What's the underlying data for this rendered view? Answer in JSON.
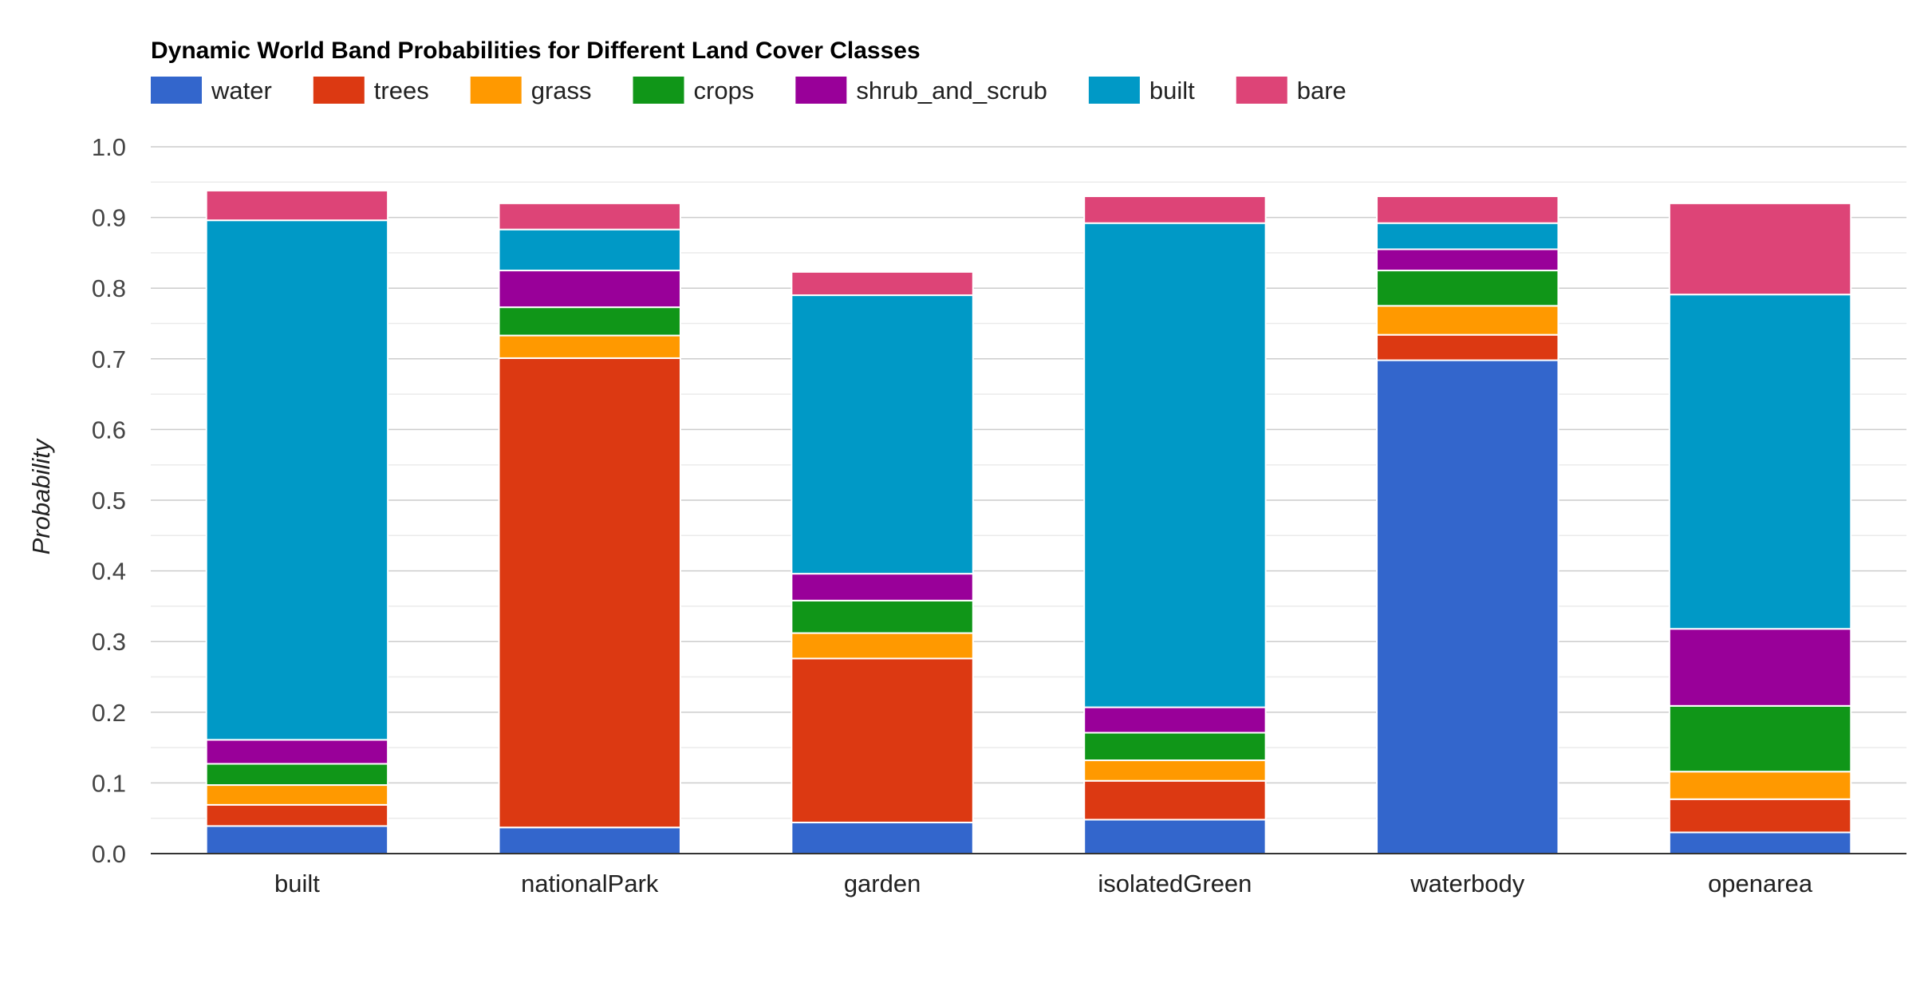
{
  "chart_data": {
    "type": "bar",
    "stacked": true,
    "title": "Dynamic World Band Probabilities for Different Land Cover Classes",
    "xlabel": "",
    "ylabel": "Probability",
    "ylim": [
      0,
      1.0
    ],
    "yticks": [
      "0.0",
      "0.1",
      "0.2",
      "0.3",
      "0.4",
      "0.5",
      "0.6",
      "0.7",
      "0.8",
      "0.9",
      "1.0"
    ],
    "grid": true,
    "legend_position": "top-left",
    "categories": [
      "built",
      "nationalPark",
      "garden",
      "isolatedGreen",
      "waterbody",
      "openarea"
    ],
    "series": [
      {
        "name": "water",
        "color": "#3366cc",
        "values": [
          0.039,
          0.037,
          0.044,
          0.048,
          0.698,
          0.03
        ]
      },
      {
        "name": "trees",
        "color": "#dc3912",
        "values": [
          0.03,
          0.664,
          0.232,
          0.055,
          0.036,
          0.047
        ]
      },
      {
        "name": "grass",
        "color": "#ff9900",
        "values": [
          0.028,
          0.032,
          0.036,
          0.029,
          0.041,
          0.039
        ]
      },
      {
        "name": "crops",
        "color": "#109618",
        "values": [
          0.03,
          0.04,
          0.046,
          0.039,
          0.05,
          0.093
        ]
      },
      {
        "name": "shrub_and_scrub",
        "color": "#990099",
        "values": [
          0.034,
          0.052,
          0.038,
          0.036,
          0.03,
          0.109
        ]
      },
      {
        "name": "built",
        "color": "#0099c6",
        "values": [
          0.735,
          0.058,
          0.394,
          0.685,
          0.037,
          0.473
        ]
      },
      {
        "name": "bare",
        "color": "#dd4477",
        "values": [
          0.042,
          0.037,
          0.033,
          0.038,
          0.038,
          0.129
        ]
      }
    ]
  }
}
